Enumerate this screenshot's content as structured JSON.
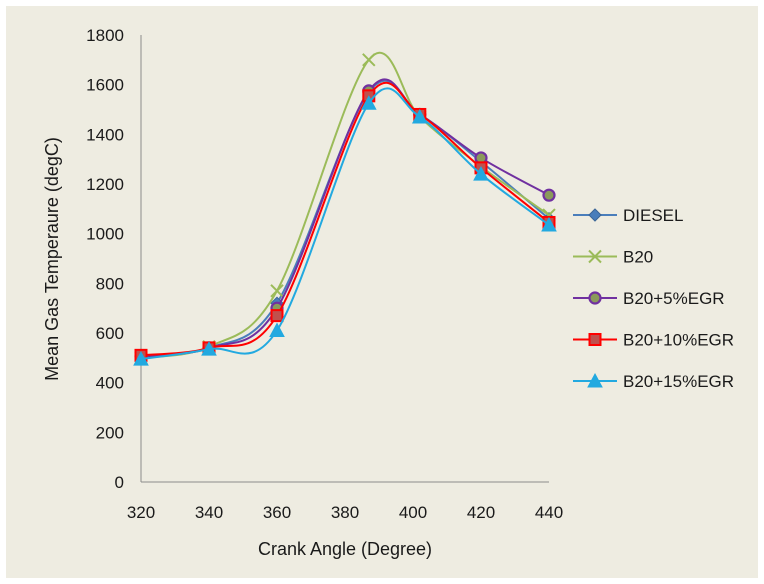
{
  "chart_data": {
    "type": "line",
    "xlabel": "Crank  Angle (Degree)",
    "ylabel": "Mean Gas Temperaure (degC)",
    "xlim": [
      320,
      440
    ],
    "ylim": [
      0,
      1800
    ],
    "x_ticks": [
      "320",
      "340",
      "360",
      "380",
      "400",
      "420",
      "440"
    ],
    "y_ticks": [
      "0",
      "200",
      "400",
      "600",
      "800",
      "1000",
      "1200",
      "1400",
      "1600",
      "1800"
    ],
    "grid": false,
    "legend_position": "right",
    "smooth": true,
    "series": [
      {
        "name": "DIESEL",
        "color": "#4a7ebb",
        "marker": "diamond",
        "x": [
          320,
          340,
          360,
          387,
          402,
          420,
          440
        ],
        "y": [
          510,
          540,
          720,
          1570,
          1480,
          1290,
          1060
        ]
      },
      {
        "name": "B20",
        "color": "#9bbb59",
        "marker": "x",
        "x": [
          320,
          340,
          360,
          387,
          402,
          420,
          440
        ],
        "y": [
          500,
          545,
          770,
          1700,
          1470,
          1270,
          1075
        ]
      },
      {
        "name": "B20+5%EGR",
        "color": "#7030a0",
        "marker": "circle",
        "x": [
          320,
          340,
          360,
          387,
          402,
          420,
          440
        ],
        "y": [
          505,
          540,
          700,
          1575,
          1480,
          1305,
          1155
        ]
      },
      {
        "name": "B20+10%EGR",
        "color": "#ff0000",
        "marker": "square",
        "x": [
          320,
          340,
          360,
          387,
          402,
          420,
          440
        ],
        "y": [
          510,
          540,
          670,
          1555,
          1480,
          1265,
          1045
        ]
      },
      {
        "name": "B20+15%EGR",
        "color": "#22a9e0",
        "marker": "triangle",
        "x": [
          320,
          340,
          360,
          387,
          402,
          420,
          440
        ],
        "y": [
          495,
          535,
          610,
          1525,
          1470,
          1240,
          1035
        ]
      }
    ]
  }
}
